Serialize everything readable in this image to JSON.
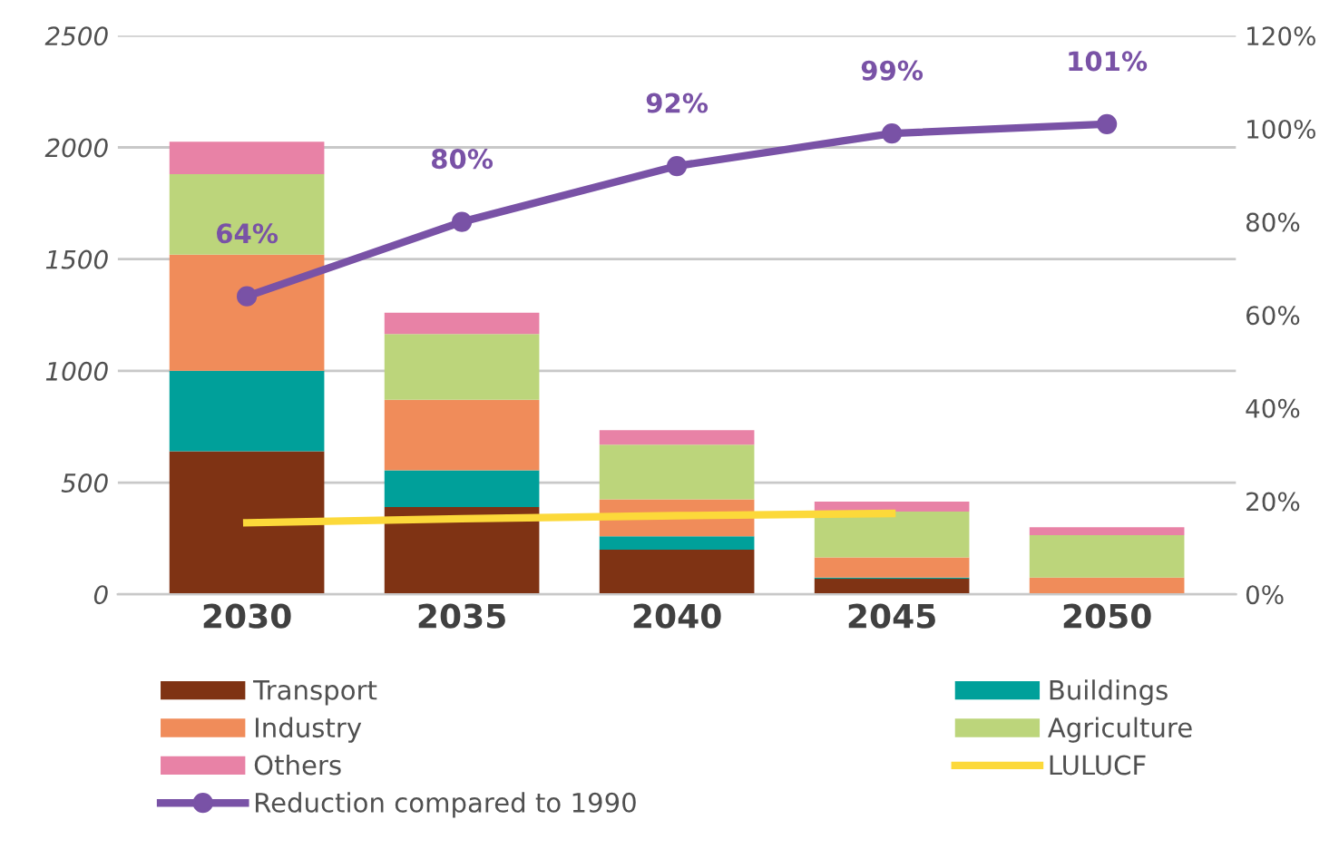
{
  "chart_data": {
    "type": "bar",
    "stacked": true,
    "categories": [
      "2030",
      "2035",
      "2040",
      "2045",
      "2050"
    ],
    "series": [
      {
        "name": "Transport",
        "color": "#7f3314",
        "values": [
          640,
          390,
          200,
          70,
          0
        ]
      },
      {
        "name": "Buildings",
        "color": "#00a09a",
        "values": [
          360,
          165,
          60,
          5,
          0
        ]
      },
      {
        "name": "Industry",
        "color": "#f08c5a",
        "values": [
          520,
          315,
          165,
          90,
          75
        ]
      },
      {
        "name": "Agriculture",
        "color": "#bcd57b",
        "values": [
          360,
          295,
          245,
          205,
          190
        ]
      },
      {
        "name": "Others",
        "color": "#e882a6",
        "values": [
          145,
          95,
          65,
          45,
          35
        ]
      },
      {
        "name": "LULUCF",
        "type": "line",
        "color": "#fcd93a",
        "values": [
          320,
          338,
          352,
          362,
          null
        ]
      },
      {
        "name": "Reduction compared to 1990",
        "type": "line",
        "axis": "y2",
        "marker": "circle",
        "color": "#7952a6",
        "values": [
          64,
          80,
          92,
          99,
          101
        ],
        "value_labels": [
          "64%",
          "80%",
          "92%",
          "99%",
          "101%"
        ]
      }
    ],
    "ylim": [
      0,
      2500
    ],
    "yticks": [
      0,
      500,
      1000,
      1500,
      2000,
      2500
    ],
    "y2lim": [
      0,
      120
    ],
    "y2ticks": [
      {
        "value": 0,
        "label": "0%"
      },
      {
        "value": 20,
        "label": "20%"
      },
      {
        "value": 40,
        "label": "40%"
      },
      {
        "value": 60,
        "label": "60%"
      },
      {
        "value": 80,
        "label": "80%"
      },
      {
        "value": 100,
        "label": "100%"
      },
      {
        "value": 120,
        "label": "120%"
      }
    ],
    "grid": "y",
    "legend": "bottom"
  }
}
